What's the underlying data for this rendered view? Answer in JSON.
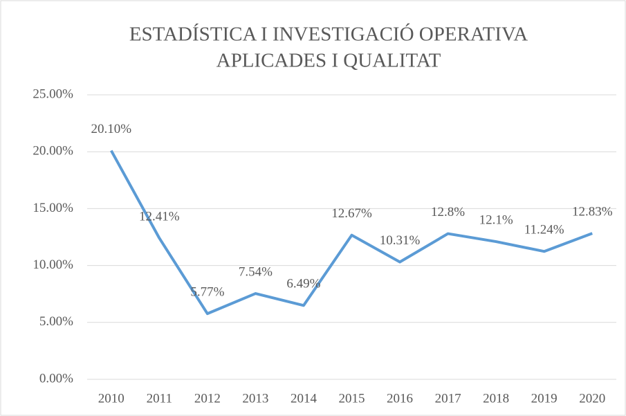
{
  "chart_data": {
    "type": "line",
    "title": [
      "ESTADÍSTICA I INVESTIGACIÓ OPERATIVA",
      "APLICADES I QUALITAT"
    ],
    "categories": [
      "2010",
      "2011",
      "2012",
      "2013",
      "2014",
      "2015",
      "2016",
      "2017",
      "2018",
      "2019",
      "2020"
    ],
    "series": [
      {
        "color": "#5b9bd5",
        "values": [
          20.1,
          12.41,
          5.77,
          7.54,
          6.49,
          12.67,
          10.31,
          12.8,
          12.1,
          11.24,
          12.83
        ],
        "value_labels": [
          "20.10%",
          "12.41%",
          "5.77%",
          "7.54%",
          "6.49%",
          "12.67%",
          "10.31%",
          "12.8%",
          "12.1%",
          "11.24%",
          "12.83%"
        ]
      }
    ],
    "ylim": [
      0,
      25
    ],
    "yticks": [
      {
        "value": 0,
        "label": "0.00%"
      },
      {
        "value": 5,
        "label": "5.00%"
      },
      {
        "value": 10,
        "label": "10.00%"
      },
      {
        "value": 15,
        "label": "15.00%"
      },
      {
        "value": 20,
        "label": "20.00%"
      },
      {
        "value": 25,
        "label": "25.00%"
      }
    ],
    "grid": true
  }
}
